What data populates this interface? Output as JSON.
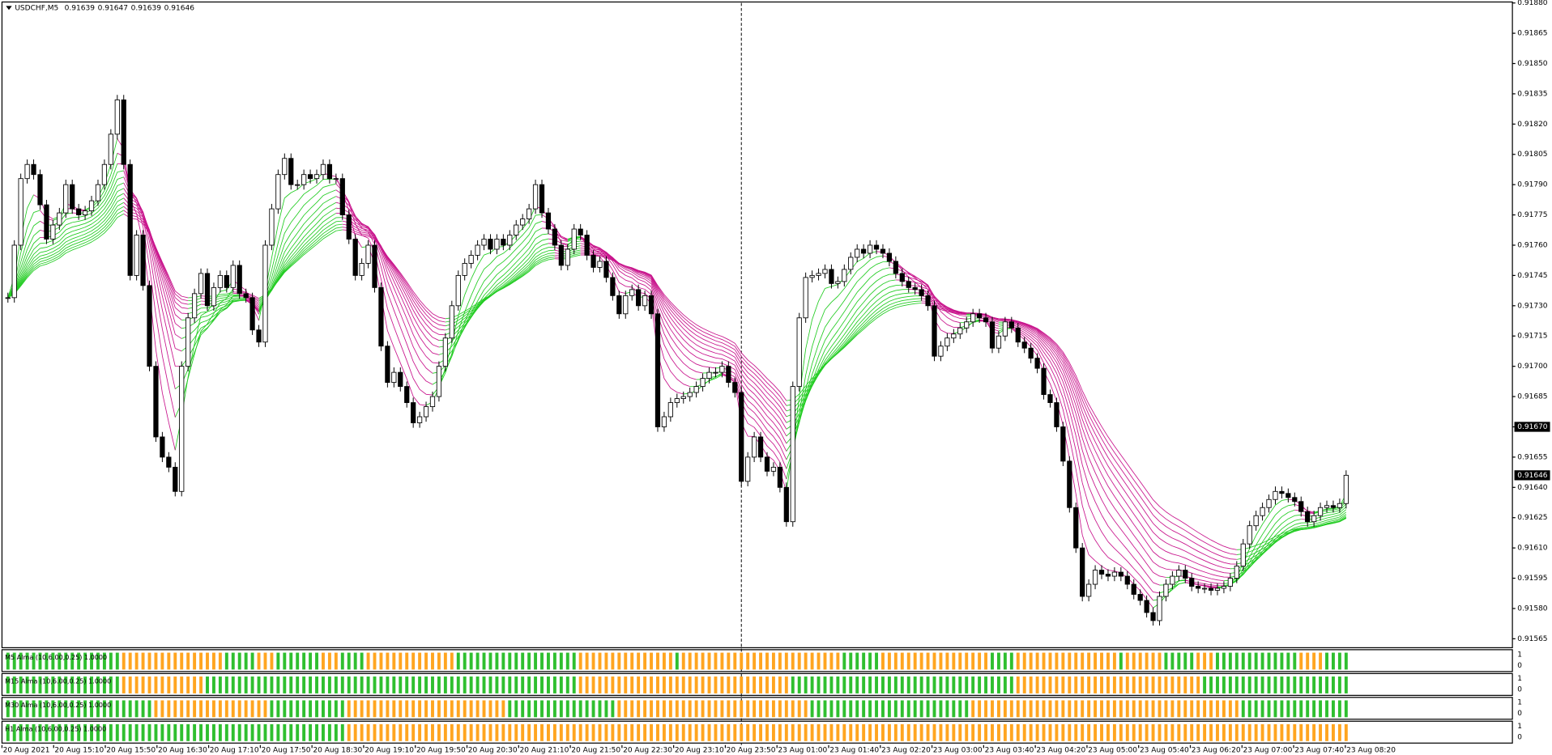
{
  "chart_data": {
    "type": "candlestick",
    "title": "USDCHF,M5",
    "header_prices": [
      0.91639,
      0.91647,
      0.91639,
      0.91646
    ],
    "ylim": [
      0.91565,
      0.9188
    ],
    "yticks": [
      {
        "value": 0.9188,
        "label": "0.91880"
      },
      0.91865,
      {
        "value": 0.9185,
        "label": "0.91850"
      },
      0.91835,
      {
        "value": 0.9182,
        "label": "0.91820"
      },
      0.91805,
      {
        "value": 0.9179,
        "label": "0.91790"
      },
      0.91775,
      {
        "value": 0.9176,
        "label": "0.91760"
      },
      0.91745,
      {
        "value": 0.9173,
        "label": "0.91730"
      },
      0.91715,
      {
        "value": 0.917,
        "label": "0.91700"
      },
      0.91685,
      {
        "value": 0.9167,
        "label": "0.91670"
      },
      0.91655,
      {
        "value": 0.9164,
        "label": "0.91640"
      },
      0.91625,
      {
        "value": 0.9161,
        "label": "0.91610"
      },
      0.91595,
      {
        "value": 0.9158,
        "label": "0.91580"
      },
      0.91565
    ],
    "price_markers": [
      {
        "value": 0.9167,
        "label": "0.91670"
      },
      0.91646
    ],
    "up_color": "#ffffff",
    "down_color": "#000000",
    "rise_color": "#22cc22",
    "fall_color": "#c8148c",
    "close": [
      0.91734,
      0.9176,
      0.91793,
      0.918,
      0.91795,
      0.9178,
      0.91763,
      0.9177,
      0.91776,
      0.9179,
      0.91778,
      0.91775,
      0.91777,
      0.91782,
      0.9179,
      0.918,
      0.91815,
      0.91832,
      0.918,
      0.91745,
      0.91765,
      0.9174,
      0.917,
      0.91665,
      0.91655,
      0.9165,
      0.91638,
      0.917,
      0.91724,
      0.91736,
      0.91746,
      0.9173,
      0.91739,
      0.91745,
      0.91739,
      0.9175,
      0.91736,
      0.91734,
      0.91718,
      0.91712,
      0.9176,
      0.91778,
      0.91795,
      0.91803,
      0.9179,
      0.9179,
      0.91795,
      0.91793,
      0.91795,
      0.918,
      0.91793,
      0.91793,
      0.91775,
      0.91763,
      0.91745,
      0.91751,
      0.9176,
      0.91739,
      0.9171,
      0.91692,
      0.91697,
      0.9169,
      0.91682,
      0.91672,
      0.91675,
      0.9168,
      0.91685,
      0.917,
      0.91714,
      0.9173,
      0.91745,
      0.91751,
      0.91755,
      0.9176,
      0.91763,
      0.91758,
      0.91763,
      0.9176,
      0.91765,
      0.9177,
      0.91773,
      0.91778,
      0.9179,
      0.91776,
      0.91768,
      0.9176,
      0.9175,
      0.91758,
      0.91768,
      0.91765,
      0.91755,
      0.91749,
      0.91752,
      0.91744,
      0.91735,
      0.91726,
      0.91735,
      0.91738,
      0.9173,
      0.91735,
      0.91726,
      0.9167,
      0.91675,
      0.91682,
      0.91684,
      0.91685,
      0.91687,
      0.9169,
      0.91694,
      0.91697,
      0.91697,
      0.917,
      0.91692,
      0.91687,
      0.91643,
      0.91655,
      0.91665,
      0.91655,
      0.91648,
      0.9165,
      0.9164,
      0.91623,
      0.9169,
      0.91724,
      0.91744,
      0.91745,
      0.91746,
      0.91748,
      0.91741,
      0.91742,
      0.91748,
      0.91754,
      0.91758,
      0.91756,
      0.9176,
      0.91758,
      0.91756,
      0.91752,
      0.91746,
      0.91742,
      0.91739,
      0.91738,
      0.91735,
      0.9173,
      0.91705,
      0.9171,
      0.91714,
      0.91716,
      0.91719,
      0.91722,
      0.91726,
      0.91724,
      0.91722,
      0.91709,
      0.91715,
      0.91722,
      0.91719,
      0.91712,
      0.91709,
      0.91704,
      0.91699,
      0.91686,
      0.91682,
      0.9167,
      0.91653,
      0.9163,
      0.9161,
      0.91586,
      0.91592,
      0.91599,
      0.91597,
      0.91596,
      0.91598,
      0.91596,
      0.91592,
      0.91587,
      0.91584,
      0.91578,
      0.91574,
      0.91586,
      0.91592,
      0.91596,
      0.91599,
      0.91595,
      0.91591,
      0.9159,
      0.9159,
      0.91589,
      0.9159,
      0.91591,
      0.91595,
      0.91601,
      0.91612,
      0.91621,
      0.91626,
      0.9163,
      0.91634,
      0.91638,
      0.91637,
      0.91635,
      0.91633,
      0.91628,
      0.91623,
      0.91626,
      0.9163,
      0.91631,
      0.9163,
      0.91632,
      0.91646
    ],
    "time_labels": [
      "20 Aug 2021",
      "20 Aug 15:10",
      "20 Aug 15:50",
      "20 Aug 16:30",
      "20 Aug 17:10",
      "20 Aug 17:50",
      "20 Aug 18:30",
      "20 Aug 19:10",
      "20 Aug 19:50",
      "20 Aug 20:30",
      "20 Aug 21:10",
      "20 Aug 21:50",
      "20 Aug 22:30",
      "20 Aug 23:10",
      "20 Aug 23:50",
      "23 Aug 01:00",
      "23 Aug 01:40",
      "23 Aug 02:20",
      "23 Aug 03:00",
      "23 Aug 03:40",
      "23 Aug 04:20",
      "23 Aug 05:00",
      "23 Aug 05:40",
      "23 Aug 06:20",
      "23 Aug 07:00",
      "23 Aug 07:40",
      "23 Aug 08:20"
    ],
    "subwindows": [
      {
        "label": "M5 Alma (10,6.00,0.25) 1.0000",
        "scale": [
          1,
          0
        ],
        "segments": [
          [
            "#2fbf2f",
            18
          ],
          [
            "#ffa520",
            16
          ],
          [
            "#2fbf2f",
            5
          ],
          [
            "#ffa520",
            3
          ],
          [
            "#2fbf2f",
            7
          ],
          [
            "#ffa520",
            3
          ],
          [
            "#2fbf2f",
            4
          ],
          [
            "#ffa520",
            14
          ],
          [
            "#2fbf2f",
            19
          ],
          [
            "#ffa520",
            15
          ],
          [
            "#2fbf2f",
            1
          ],
          [
            "#ffa520",
            25
          ],
          [
            "#2fbf2f",
            6
          ],
          [
            "#ffa520",
            17
          ],
          [
            "#2fbf2f",
            4
          ],
          [
            "#ffa520",
            16
          ],
          [
            "#2fbf2f",
            1
          ],
          [
            "#ffa520",
            6
          ],
          [
            "#2fbf2f",
            5
          ],
          [
            "#ffa520",
            3
          ],
          [
            "#2fbf2f",
            13
          ],
          [
            "#ffa520",
            4
          ],
          [
            "#2fbf2f",
            4
          ]
        ]
      },
      {
        "label": "M15 Alma (10,6.00,0.25) 1.0000",
        "scale": [
          1,
          0
        ],
        "segments": [
          [
            "#2fbf2f",
            18
          ],
          [
            "#ffa520",
            13
          ],
          [
            "#2fbf2f",
            58
          ],
          [
            "#ffa520",
            33
          ],
          [
            "#2fbf2f",
            35
          ],
          [
            "#ffa520",
            29
          ],
          [
            "#2fbf2f",
            23
          ]
        ]
      },
      {
        "label": "M30 Alma (10,6.00,0.25) 1.0000",
        "scale": [
          1,
          0
        ],
        "segments": [
          [
            "#2fbf2f",
            23
          ],
          [
            "#ffa520",
            18
          ],
          [
            "#2fbf2f",
            12
          ],
          [
            "#ffa520",
            25
          ],
          [
            "#2fbf2f",
            17
          ],
          [
            "#ffa520",
            30
          ],
          [
            "#2fbf2f",
            25
          ],
          [
            "#ffa520",
            42
          ],
          [
            "#2fbf2f",
            17
          ]
        ]
      },
      {
        "label": "H1 Alma (10,6.00,0.25) 1.0000",
        "scale": [
          1,
          0
        ],
        "segments": [
          [
            "#2fbf2f",
            53
          ],
          [
            "#ffa520",
            156
          ]
        ]
      }
    ]
  }
}
